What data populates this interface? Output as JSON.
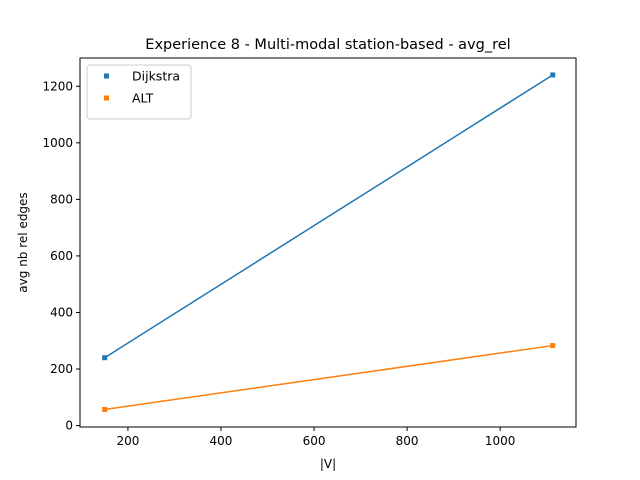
{
  "chart_data": {
    "type": "line",
    "title": "Experience 8 - Multi-modal station-based - avg_rel",
    "xlabel": "|V|",
    "ylabel": "avg nb rel edges",
    "xlim": [
      97,
      1163
    ],
    "ylim": [
      -5,
      1300
    ],
    "xticks": [
      200,
      400,
      600,
      800,
      1000
    ],
    "yticks": [
      0,
      200,
      400,
      600,
      800,
      1000,
      1200
    ],
    "grid": false,
    "legend_position": "top-left",
    "series": [
      {
        "name": "Dijkstra",
        "color": "#1f77b4",
        "x": [
          150,
          1113
        ],
        "y": [
          240,
          1240
        ]
      },
      {
        "name": "ALT",
        "color": "#ff7f0e",
        "x": [
          150,
          1113
        ],
        "y": [
          57,
          283
        ]
      }
    ]
  }
}
